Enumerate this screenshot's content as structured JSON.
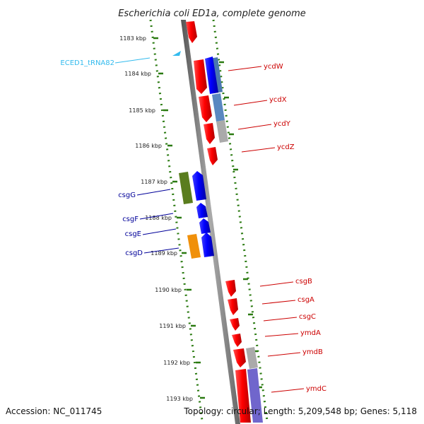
{
  "title": "Escherichia coli ED1a, complete genome",
  "footer": {
    "accession": "Accession: NC_011745",
    "summary": "Topology: circular; Length: 5,209,548 bp; Genes: 5,118"
  },
  "kbp_labels": [
    "1183 kbp",
    "1184 kbp",
    "1185 kbp",
    "1186 kbp",
    "1187 kbp",
    "1188 kbp",
    "1189 kbp",
    "1190 kbp",
    "1191 kbp",
    "1192 kbp",
    "1193 kbp"
  ],
  "right_genes": [
    "ycdW",
    "ycdX",
    "ycdY",
    "ycdZ",
    "csgB",
    "csgA",
    "csgC",
    "ymdA",
    "ymdB",
    "ymdC"
  ],
  "left_genes": [
    "csgG",
    "csgF",
    "csgE",
    "csgD"
  ],
  "trna_label": "ECED1_tRNA82",
  "colors": {
    "forward_gene": "#ff0000",
    "reverse_gene": "#0000ff",
    "gene_label_right": "#cc0000",
    "gene_label_left": "#000099",
    "trna": "#33bbee",
    "tick_dots": "#2a7a10",
    "backbone": "#888888",
    "csgG_box": "#5a7d1e",
    "csgD_box": "#f0900a",
    "steel_blue_box": "#4a78b0",
    "grey_box": "#aaaaaa",
    "lavender_box": "#7066cc"
  }
}
